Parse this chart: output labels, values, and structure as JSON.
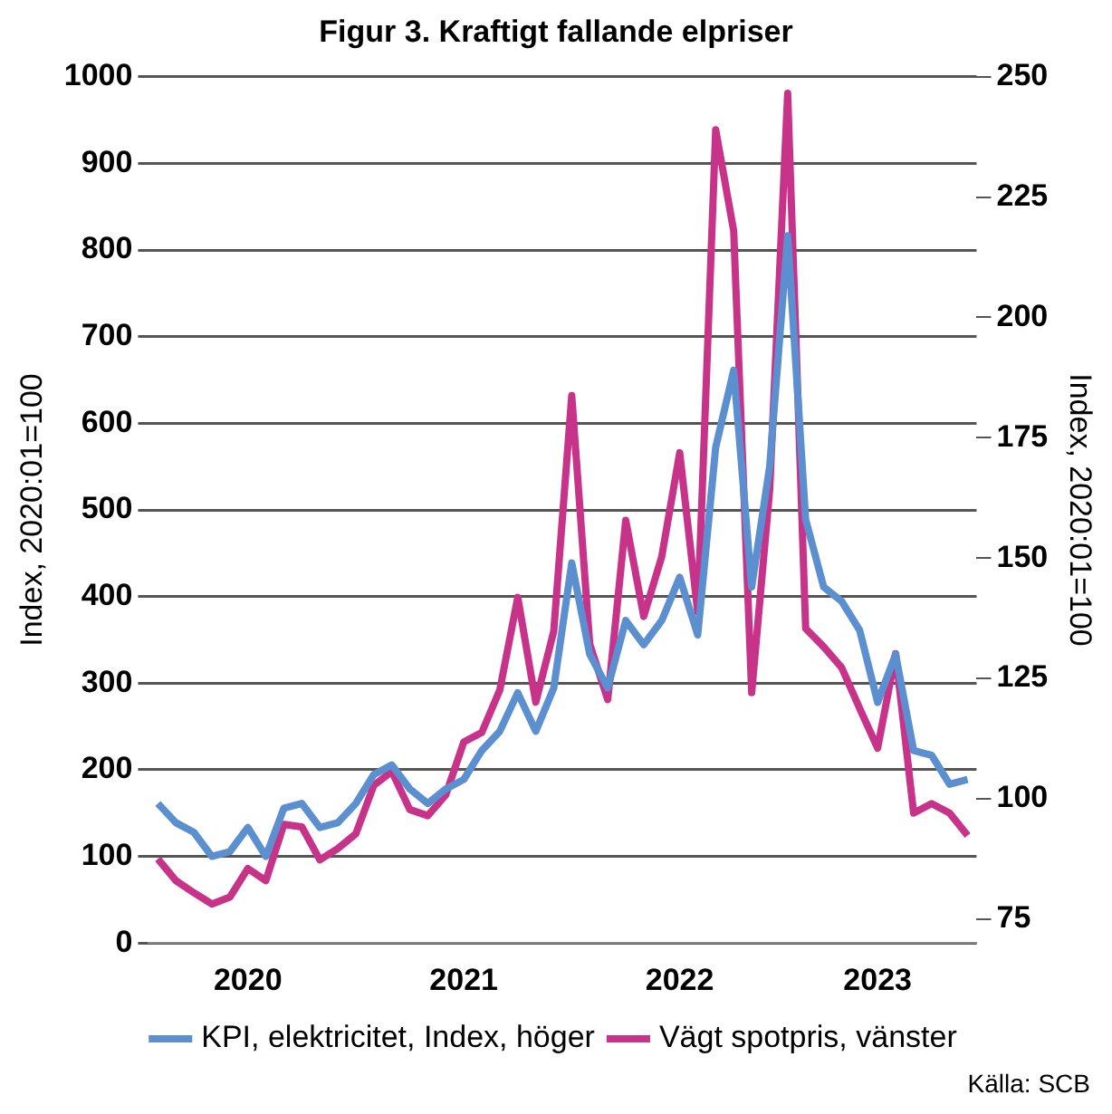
{
  "chart_data": {
    "type": "line",
    "title": "Figur 3. Kraftigt fallande elpriser",
    "categories": [
      null,
      null,
      null,
      null,
      null,
      "2020",
      null,
      null,
      null,
      null,
      null,
      null,
      null,
      null,
      null,
      null,
      null,
      "2021",
      null,
      null,
      null,
      null,
      null,
      null,
      null,
      null,
      null,
      null,
      null,
      "2022",
      null,
      null,
      null,
      null,
      null,
      null,
      null,
      null,
      null,
      null,
      "2023",
      null,
      null,
      null,
      null,
      null
    ],
    "series": [
      {
        "name": "KPI, elektricitet, Index, höger",
        "color": "#5b8fd0",
        "axis": "y2",
        "values": [
          99,
          95,
          93,
          88,
          89,
          94,
          88,
          98,
          99,
          94,
          95,
          99,
          105,
          107,
          102,
          99,
          102,
          104,
          110,
          114,
          122,
          114,
          123,
          149,
          130,
          123,
          137,
          132,
          137,
          146,
          134,
          173,
          189,
          144,
          169,
          217,
          158,
          144,
          141,
          135,
          120,
          130,
          110,
          109,
          103,
          104
        ]
      },
      {
        "name": "Vägt spotpris, vänster",
        "color": "#c8338a",
        "values": [
          97,
          72,
          58,
          45,
          53,
          86,
          72,
          137,
          134,
          96,
          109,
          126,
          182,
          198,
          154,
          147,
          171,
          232,
          243,
          292,
          399,
          278,
          360,
          632,
          345,
          281,
          488,
          377,
          446,
          566,
          382,
          939,
          822,
          289,
          523,
          981,
          363,
          342,
          318,
          271,
          225,
          334,
          150,
          161,
          150,
          124
        ]
      }
    ],
    "ylabel": "Index, 2020:01=100",
    "y2label": "Index, 2020:01=100",
    "ylim": [
      0,
      1000
    ],
    "yticks": [
      0,
      100,
      200,
      300,
      400,
      500,
      600,
      700,
      800,
      900,
      1000
    ],
    "y2lim": [
      70,
      250
    ],
    "y2ticks": [
      75,
      100,
      125,
      150,
      175,
      200,
      225,
      250
    ],
    "grid": "y",
    "legend": "bottom",
    "marker": "none",
    "line_style": "solid",
    "annotations": [
      "Källa: SCB"
    ]
  }
}
